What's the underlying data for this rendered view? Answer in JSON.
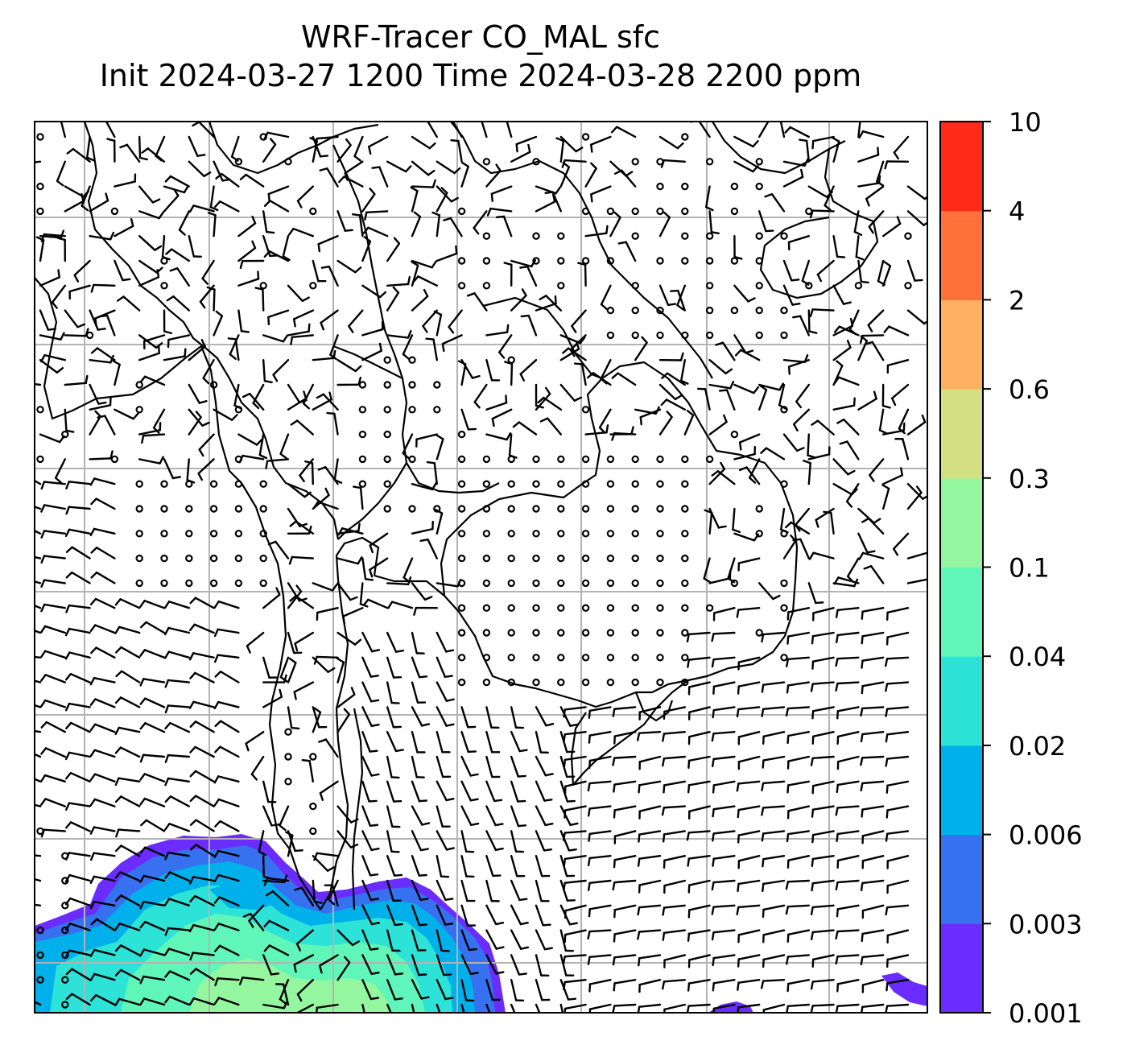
{
  "title": {
    "line1": "WRF-Tracer CO_MAL sfc",
    "line2": "Init 2024-03-27 1200 Time 2024-03-28 2200 ppm"
  },
  "colorbar": {
    "levels": [
      "0.001",
      "0.003",
      "0.006",
      "0.02",
      "0.04",
      "0.1",
      "0.3",
      "0.6",
      "2",
      "4",
      "10"
    ],
    "colors": [
      "#6a2cff",
      "#3672f0",
      "#00b0ea",
      "#2de2d6",
      "#60f6b9",
      "#94f79f",
      "#d2e083",
      "#ffb061",
      "#ff7138",
      "#ff2a17"
    ]
  },
  "map": {
    "field_colors": {
      "purple": "#6a2cff",
      "blue": "#3672f0",
      "cyan": "#00b0ea",
      "teal": "#2de2d6",
      "aqua": "#60f6b9",
      "green": "#94f79f"
    },
    "gridline_color": "#b3b3b3",
    "coastline_color": "#000000"
  }
}
